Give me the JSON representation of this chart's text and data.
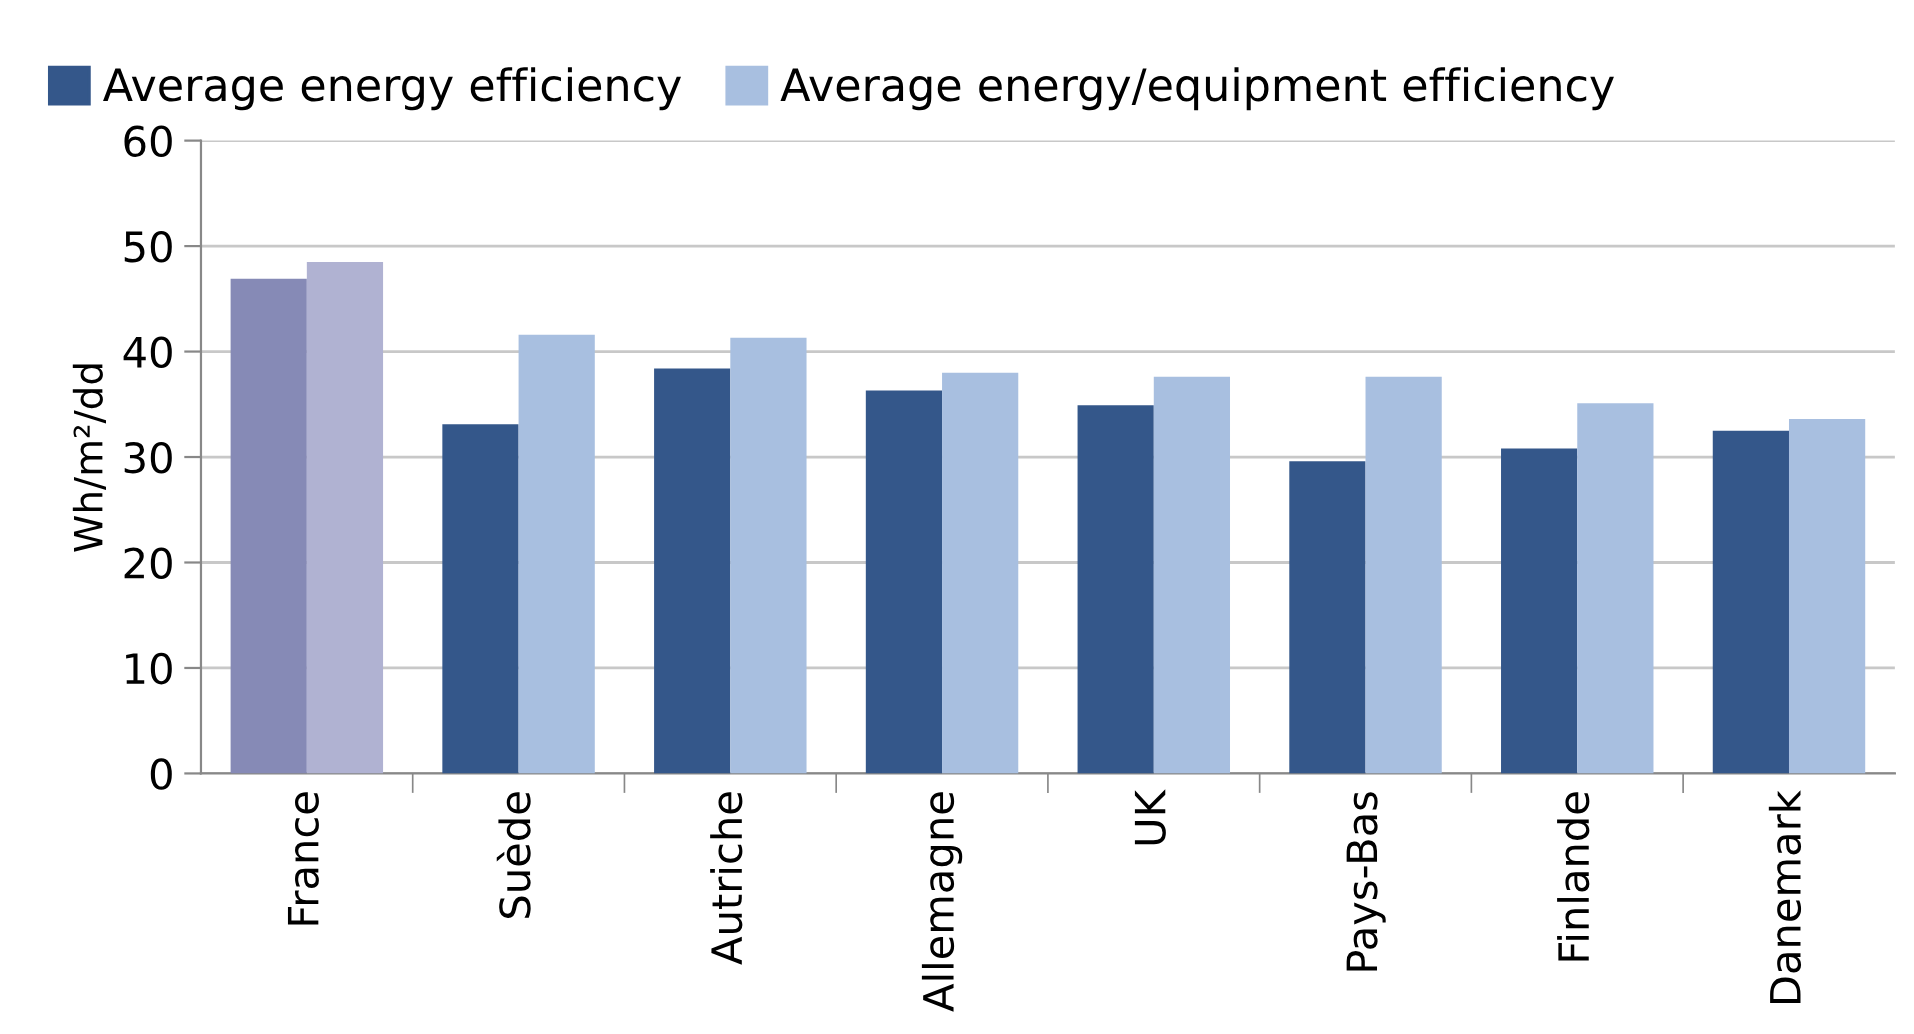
{
  "chart_data": {
    "type": "bar",
    "ylabel": "Wh/m²/dd",
    "categories": [
      "France",
      "Suède",
      "Autriche",
      "Allemagne",
      "UK",
      "Pays-Bas",
      "Finlande",
      "Danemark"
    ],
    "series": [
      {
        "name": "Average energy efficiency",
        "color": "#34578a",
        "colors": [
          "#868ab6",
          "#34578a",
          "#34578a",
          "#34578a",
          "#34578a",
          "#34578a",
          "#34578a",
          "#34578a"
        ],
        "values": [
          46.9,
          33.1,
          38.4,
          36.3,
          34.9,
          29.6,
          30.8,
          32.5
        ]
      },
      {
        "name": "Average energy/equipment efficiency",
        "color": "#a8bfe0",
        "colors": [
          "#b0b2d2",
          "#a8bfe0",
          "#a8bfe0",
          "#a8bfe0",
          "#a8bfe0",
          "#a8bfe0",
          "#a8bfe0",
          "#a8bfe0"
        ],
        "values": [
          48.5,
          41.6,
          41.3,
          38.0,
          37.6,
          37.6,
          35.1,
          33.6
        ]
      }
    ],
    "ylim": [
      0,
      60
    ],
    "yticks": [
      0,
      10,
      20,
      30,
      40,
      50,
      60
    ],
    "grid": "y",
    "legend": "top left"
  }
}
